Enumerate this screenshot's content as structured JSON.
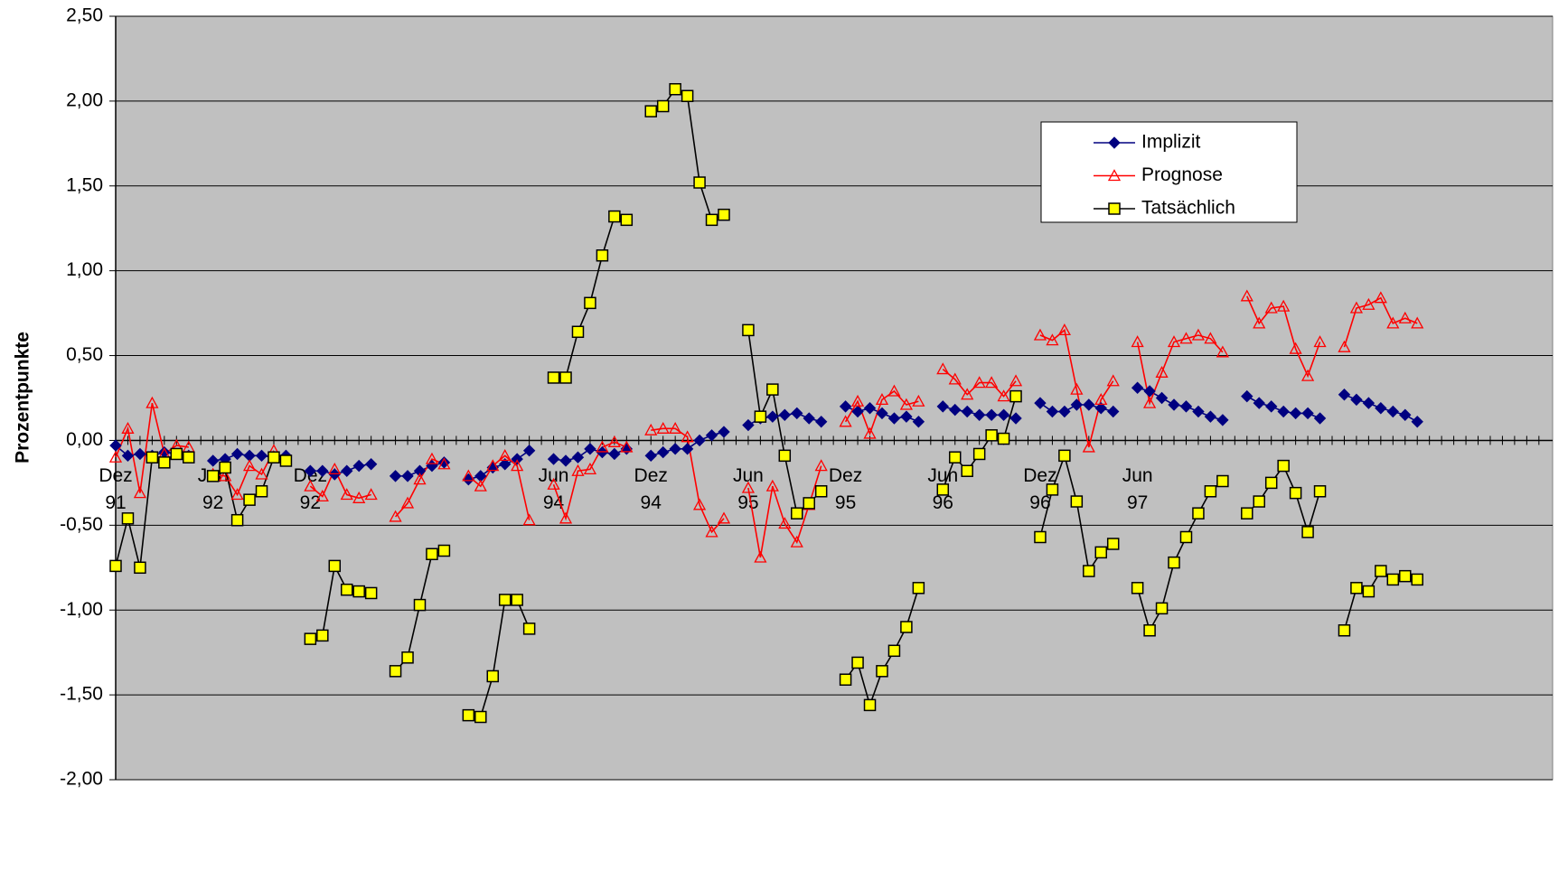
{
  "chart_data": {
    "type": "line",
    "y_label": "Prozentpunkte",
    "categories": [
      "Dez 91",
      null,
      null,
      null,
      null,
      null,
      null,
      null,
      "Jun 92",
      null,
      null,
      null,
      null,
      null,
      null,
      null,
      "Dez 92",
      null,
      null,
      null,
      null,
      null,
      null,
      null,
      null,
      null,
      null,
      null,
      null,
      null,
      null,
      null,
      null,
      null,
      null,
      null,
      "Jun 94",
      null,
      null,
      null,
      null,
      null,
      null,
      null,
      "Dez 94",
      null,
      null,
      null,
      null,
      null,
      null,
      null,
      "Jun 95",
      null,
      null,
      null,
      null,
      null,
      null,
      null,
      "Dez 95",
      null,
      null,
      null,
      null,
      null,
      null,
      null,
      "Jun 96",
      null,
      null,
      null,
      null,
      null,
      null,
      null,
      "Dez 96",
      null,
      null,
      null,
      null,
      null,
      null,
      null,
      "Jun 97",
      null,
      null,
      null,
      null,
      null,
      null,
      null,
      null,
      null,
      null,
      null,
      null,
      null,
      null,
      null,
      null,
      null,
      null,
      null,
      null,
      null,
      null,
      null,
      null,
      null,
      null,
      null,
      null,
      null,
      null,
      null,
      null,
      null
    ],
    "series": [
      {
        "name": "Implizit",
        "color": "#000080",
        "marker": "diamond",
        "values": [
          -0.03,
          -0.09,
          -0.08,
          -0.09,
          -0.07,
          -0.08,
          -0.09,
          null,
          -0.12,
          -0.11,
          -0.08,
          -0.09,
          -0.09,
          -0.1,
          -0.09,
          null,
          -0.18,
          -0.18,
          -0.2,
          -0.18,
          -0.15,
          -0.14,
          null,
          -0.21,
          -0.21,
          -0.18,
          -0.15,
          -0.13,
          null,
          -0.23,
          -0.21,
          -0.16,
          -0.14,
          -0.11,
          -0.06,
          null,
          -0.11,
          -0.12,
          -0.1,
          -0.05,
          -0.07,
          -0.08,
          -0.05,
          null,
          -0.09,
          -0.07,
          -0.05,
          -0.05,
          0.0,
          0.03,
          0.05,
          null,
          0.09,
          0.13,
          0.14,
          0.15,
          0.16,
          0.13,
          0.11,
          null,
          0.2,
          0.17,
          0.19,
          0.16,
          0.13,
          0.14,
          0.11,
          null,
          0.2,
          0.18,
          0.17,
          0.15,
          0.15,
          0.15,
          0.13,
          null,
          0.22,
          0.17,
          0.17,
          0.21,
          0.21,
          0.19,
          0.17,
          null,
          0.31,
          0.29,
          0.25,
          0.21,
          0.2,
          0.17,
          0.14,
          0.12,
          null,
          0.26,
          0.22,
          0.2,
          0.17,
          0.16,
          0.16,
          0.13,
          null,
          0.27,
          0.24,
          0.22,
          0.19,
          0.17,
          0.15,
          0.11,
          null,
          null,
          null,
          null,
          null,
          null,
          null,
          null,
          null,
          null
        ]
      },
      {
        "name": "Prognose",
        "color": "#ff0000",
        "marker": "triangle",
        "values": [
          -0.1,
          0.07,
          -0.31,
          0.22,
          -0.08,
          -0.03,
          -0.04,
          null,
          -0.2,
          -0.21,
          -0.32,
          -0.15,
          -0.2,
          -0.06,
          null,
          null,
          -0.27,
          -0.33,
          -0.17,
          -0.32,
          -0.34,
          -0.32,
          null,
          -0.45,
          -0.37,
          -0.23,
          -0.11,
          -0.14,
          null,
          -0.21,
          -0.27,
          -0.15,
          -0.09,
          -0.15,
          -0.47,
          null,
          -0.26,
          -0.46,
          -0.18,
          -0.17,
          -0.04,
          -0.01,
          -0.04,
          null,
          0.06,
          0.07,
          0.07,
          0.02,
          -0.38,
          -0.54,
          -0.46,
          null,
          -0.28,
          -0.69,
          -0.27,
          -0.49,
          -0.6,
          -0.38,
          -0.15,
          null,
          0.11,
          0.23,
          0.04,
          0.24,
          0.29,
          0.21,
          0.23,
          null,
          0.42,
          0.36,
          0.27,
          0.34,
          0.34,
          0.26,
          0.35,
          null,
          0.62,
          0.59,
          0.65,
          0.3,
          -0.04,
          0.24,
          0.35,
          null,
          0.58,
          0.22,
          0.4,
          0.58,
          0.6,
          0.62,
          0.6,
          0.52,
          null,
          0.85,
          0.69,
          0.78,
          0.79,
          0.54,
          0.38,
          0.58,
          null,
          0.55,
          0.78,
          0.8,
          0.84,
          0.69,
          0.72,
          0.69,
          null,
          null,
          null,
          null,
          null,
          null,
          null,
          null,
          null,
          null
        ]
      },
      {
        "name": "Tatsächlich",
        "color": "#ffff00",
        "line_color": "#000000",
        "marker": "square",
        "values": [
          -0.74,
          -0.46,
          -0.75,
          -0.1,
          -0.13,
          -0.08,
          -0.1,
          null,
          -0.21,
          -0.16,
          -0.47,
          -0.35,
          -0.3,
          -0.1,
          -0.12,
          null,
          -1.17,
          -1.15,
          -0.74,
          -0.88,
          -0.89,
          -0.9,
          null,
          -1.36,
          -1.28,
          -0.97,
          -0.67,
          -0.65,
          null,
          -1.62,
          -1.63,
          -1.39,
          -0.94,
          -0.94,
          -1.11,
          null,
          0.37,
          0.37,
          0.64,
          0.81,
          1.09,
          1.32,
          1.3,
          null,
          1.94,
          1.97,
          2.07,
          2.03,
          1.52,
          1.3,
          1.33,
          null,
          0.65,
          0.14,
          0.3,
          -0.09,
          -0.43,
          -0.37,
          -0.3,
          null,
          -1.41,
          -1.31,
          -1.56,
          -1.36,
          -1.24,
          -1.1,
          -0.87,
          null,
          -0.29,
          -0.1,
          -0.18,
          -0.08,
          0.03,
          0.01,
          0.26,
          null,
          -0.57,
          -0.29,
          -0.09,
          -0.36,
          -0.77,
          -0.66,
          -0.61,
          null,
          -0.87,
          -1.12,
          -0.99,
          -0.72,
          -0.57,
          -0.43,
          -0.3,
          -0.24,
          null,
          -0.43,
          -0.36,
          -0.25,
          -0.15,
          -0.31,
          -0.54,
          -0.3,
          null,
          -1.12,
          -0.87,
          -0.89,
          -0.77,
          -0.82,
          -0.8,
          -0.82,
          null,
          null,
          null,
          null,
          null,
          null,
          null,
          null,
          null,
          null
        ]
      }
    ],
    "ylim": [
      -2.0,
      2.5
    ],
    "yticks": [
      {
        "value": -2.0,
        "label": "-2,00"
      },
      {
        "value": -1.5,
        "label": "-1,50"
      },
      {
        "value": -1.0,
        "label": "-1,00"
      },
      {
        "value": -0.5,
        "label": "-0,50"
      },
      {
        "value": 0,
        "label": "0,00"
      },
      {
        "value": 0.5,
        "label": "0,50"
      },
      {
        "value": 1.0,
        "label": "1,00"
      },
      {
        "value": 1.5,
        "label": "1,50"
      },
      {
        "value": 2.0,
        "label": "2,00"
      },
      {
        "value": 2.5,
        "label": "2,50"
      }
    ],
    "grid": true,
    "legend": "upper right",
    "plot_background": "#c0c0c0"
  }
}
